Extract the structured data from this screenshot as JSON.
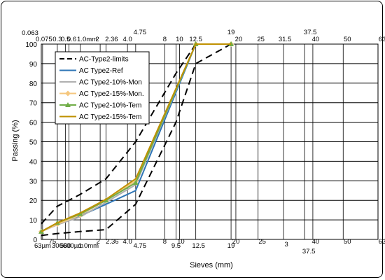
{
  "chart_data": {
    "type": "line",
    "title": "",
    "xlabel": "Sieves (mm)",
    "ylabel": "Passing (%)",
    "x_scale": "power 0.45 (gradation chart)",
    "xlim": [
      0.063,
      63
    ],
    "ylim": [
      0,
      100
    ],
    "y_ticks": [
      0,
      10,
      20,
      30,
      40,
      50,
      60,
      70,
      80,
      90,
      100
    ],
    "grid": true,
    "legend_position": "top-left",
    "top_tick_labels": [
      "0.063",
      "0.075",
      "0.3",
      "0.5",
      "0.6",
      "1.0mm",
      "2",
      "2.36",
      "4.0",
      "4.75",
      "8",
      "10",
      "12.5",
      "19",
      "20",
      "25",
      "31.5",
      "37.5",
      "40",
      "50",
      "63"
    ],
    "bottom_tick_labels": [
      "63µm",
      "75",
      "300",
      "500",
      "600µm",
      "1.0mm",
      "2",
      "2.36",
      "4.0",
      "4.75",
      "8",
      "9.5",
      "10",
      "12.5",
      "19",
      "20",
      "25",
      "3",
      "37.5",
      "40",
      "50",
      "63"
    ],
    "series": [
      {
        "name": "AC-Type2-limits",
        "color": "#000000",
        "dash": "dashed",
        "segments": [
          {
            "x": [
              0.063,
              0.3,
              1.0,
              2.36,
              4.75,
              9.5,
              12.5
            ],
            "y": [
              8,
              17,
              23,
              31,
              50,
              85,
              100
            ]
          },
          {
            "x": [
              0.063,
              0.3,
              1.0,
              2.36,
              4.75,
              9.5,
              12.5,
              19
            ],
            "y": [
              2,
              3,
              4,
              5,
              18,
              60,
              90,
              100
            ]
          }
        ]
      },
      {
        "name": "AC Type2-Ref",
        "color": "#2e75b6",
        "marker": "none",
        "x": [
          0.063,
          0.3,
          1.0,
          2.36,
          4.75,
          12.5,
          19
        ],
        "y": [
          4,
          8,
          12,
          18,
          25,
          100,
          100
        ]
      },
      {
        "name": "AC Type2-10%-Mon",
        "color": "#b0b0b0",
        "marker": "none",
        "x": [
          0.063,
          0.3,
          1.0,
          2.36,
          4.75,
          12.5,
          19
        ],
        "y": [
          4,
          7.5,
          11.5,
          19,
          28,
          100,
          100
        ]
      },
      {
        "name": "AC Type2-15%-Mon.",
        "color": "#f5c77e",
        "marker": "diamond",
        "x": [
          0.063,
          0.3,
          1.0,
          2.36,
          4.75,
          12.5,
          19
        ],
        "y": [
          4,
          7.8,
          12.5,
          20,
          30,
          100,
          100
        ]
      },
      {
        "name": "AC Type2-10%-Tem",
        "color": "#70ad47",
        "marker": "triangle",
        "x": [
          0.063,
          0.3,
          1.0,
          2.36,
          4.75,
          12.5,
          19
        ],
        "y": [
          4,
          8.5,
          13,
          20,
          29,
          100,
          100
        ]
      },
      {
        "name": "AC Type2-15%-Tem",
        "color": "#bf9000",
        "marker": "none",
        "x": [
          0.063,
          0.3,
          1.0,
          2.36,
          4.75,
          12.5,
          19
        ],
        "y": [
          4,
          8.5,
          13.5,
          20.5,
          31,
          100,
          100
        ]
      }
    ]
  }
}
